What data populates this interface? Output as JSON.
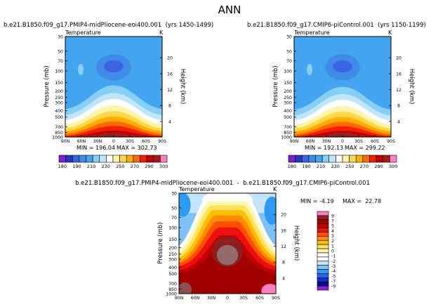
{
  "page_title": "ANN",
  "colors": {
    "abs_scale": [
      "#7b1fd6",
      "#2436c4",
      "#3a64e0",
      "#3f8ce8",
      "#43a5f0",
      "#86cff6",
      "#bfe6fb",
      "#ffffff",
      "#fff5a8",
      "#ffd84a",
      "#ffad00",
      "#ff6a00",
      "#f21f00",
      "#c40000",
      "#a31c1c",
      "#ff80c0"
    ],
    "diff_scale": [
      "#8a1fe0",
      "#0a0a8a",
      "#1a2fc8",
      "#1f6ae8",
      "#2d9bf5",
      "#7cc2f7",
      "#c4e4fb",
      "#ffffff",
      "#ffffff",
      "#fff6b0",
      "#ffe35a",
      "#ffbe00",
      "#ff8c00",
      "#ff5000",
      "#ee1010",
      "#c40000",
      "#a30000",
      "#8c2020",
      "#ff80c0"
    ]
  },
  "chart_data": [
    {
      "type": "heatmap",
      "panel": "top-left",
      "title": "b.e21.B1850.f09_g17.PMIP4-midPliocene-eoi400.001  (yrs 1450-1499)",
      "subtitle": "Temperature",
      "units": "K",
      "xlabel": "",
      "ylabel": "Pressure (mb)",
      "ylabel_right": "Height (km)",
      "x_ticks": [
        "90N",
        "60N",
        "30N",
        "0",
        "30S",
        "60S",
        "90S"
      ],
      "x_values": [
        90,
        60,
        30,
        0,
        -30,
        -60,
        -90
      ],
      "y_ticks": [
        "30",
        "50",
        "70",
        "100",
        "150",
        "200",
        "250",
        "300",
        "400",
        "500",
        "700",
        "850",
        "1000"
      ],
      "y_values": [
        30,
        50,
        70,
        100,
        150,
        200,
        250,
        300,
        400,
        500,
        700,
        850,
        1000
      ],
      "right_ticks": [
        "4",
        "8",
        "12",
        "16",
        "20"
      ],
      "right_values": [
        4,
        8,
        12,
        16,
        20
      ],
      "min_label": "MIN = 196.04",
      "max_label": "MAX = 302.73",
      "min": 196.04,
      "max": 302.73,
      "levels": [
        "180",
        "190",
        "200",
        "210",
        "220",
        "230",
        "240",
        "250",
        "260",
        "270",
        "280",
        "290",
        "300"
      ],
      "level_labels": [
        "180",
        "190",
        "210",
        "230",
        "250",
        "270",
        "290",
        "300"
      ]
    },
    {
      "type": "heatmap",
      "panel": "top-right",
      "title": "b.e21.B1850.f09_g17.CMIP6-piControl.001  (yrs 1150-1199)",
      "subtitle": "Temperature",
      "units": "K",
      "xlabel": "",
      "ylabel": "Pressure (mb)",
      "ylabel_right": "Height (km)",
      "x_ticks": [
        "90N",
        "60N",
        "30N",
        "0",
        "30S",
        "60S",
        "90S"
      ],
      "x_values": [
        90,
        60,
        30,
        0,
        -30,
        -60,
        -90
      ],
      "y_ticks": [
        "30",
        "50",
        "70",
        "100",
        "150",
        "200",
        "250",
        "300",
        "400",
        "500",
        "700",
        "850",
        "1000"
      ],
      "y_values": [
        30,
        50,
        70,
        100,
        150,
        200,
        250,
        300,
        400,
        500,
        700,
        850,
        1000
      ],
      "right_ticks": [
        "4",
        "8",
        "12",
        "16",
        "20"
      ],
      "right_values": [
        4,
        8,
        12,
        16,
        20
      ],
      "min_label": "MIN = 192.13",
      "max_label": "MAX = 299.22",
      "min": 192.13,
      "max": 299.22,
      "levels": [
        "180",
        "190",
        "200",
        "210",
        "220",
        "230",
        "240",
        "250",
        "260",
        "270",
        "280",
        "290",
        "300"
      ],
      "level_labels": [
        "180",
        "190",
        "210",
        "230",
        "250",
        "270",
        "290",
        "300"
      ]
    },
    {
      "type": "heatmap",
      "panel": "bottom",
      "title": "b.e21.B1850.f09_g17.PMIP4-midPliocene-eoi400.001  -  b.e21.B1850.f09_g17.CMIP6-piControl.001",
      "subtitle": "Temperature",
      "units": "K",
      "xlabel": "",
      "ylabel": "Pressure (mb)",
      "ylabel_right": "Height (km)",
      "x_ticks": [
        "90N",
        "60N",
        "30N",
        "0",
        "30S",
        "60S",
        "90S"
      ],
      "x_values": [
        90,
        60,
        30,
        0,
        -30,
        -60,
        -90
      ],
      "y_ticks": [
        "30",
        "50",
        "70",
        "100",
        "150",
        "200",
        "250",
        "300",
        "400",
        "500",
        "700",
        "850",
        "1000"
      ],
      "y_values": [
        30,
        50,
        70,
        100,
        150,
        200,
        250,
        300,
        400,
        500,
        700,
        850,
        1000
      ],
      "right_ticks": [
        "4",
        "8",
        "12",
        "16",
        "20"
      ],
      "right_values": [
        4,
        8,
        12,
        16,
        20
      ],
      "min_label": "MIN = -4.19",
      "max_label": "MAX =  22.78",
      "min": -4.19,
      "max": 22.78,
      "levels": [
        "-9",
        "-7",
        "-5",
        "-4",
        "-3",
        "-2",
        "-1",
        "0",
        "1",
        "2",
        "3",
        "4",
        "5",
        "7",
        "9"
      ],
      "level_labels": [
        "-9",
        "-7",
        "-5",
        "-4",
        "-3",
        "-2",
        "-1",
        "0",
        "1",
        "2",
        "3",
        "4",
        "5",
        "7",
        "9"
      ]
    }
  ]
}
